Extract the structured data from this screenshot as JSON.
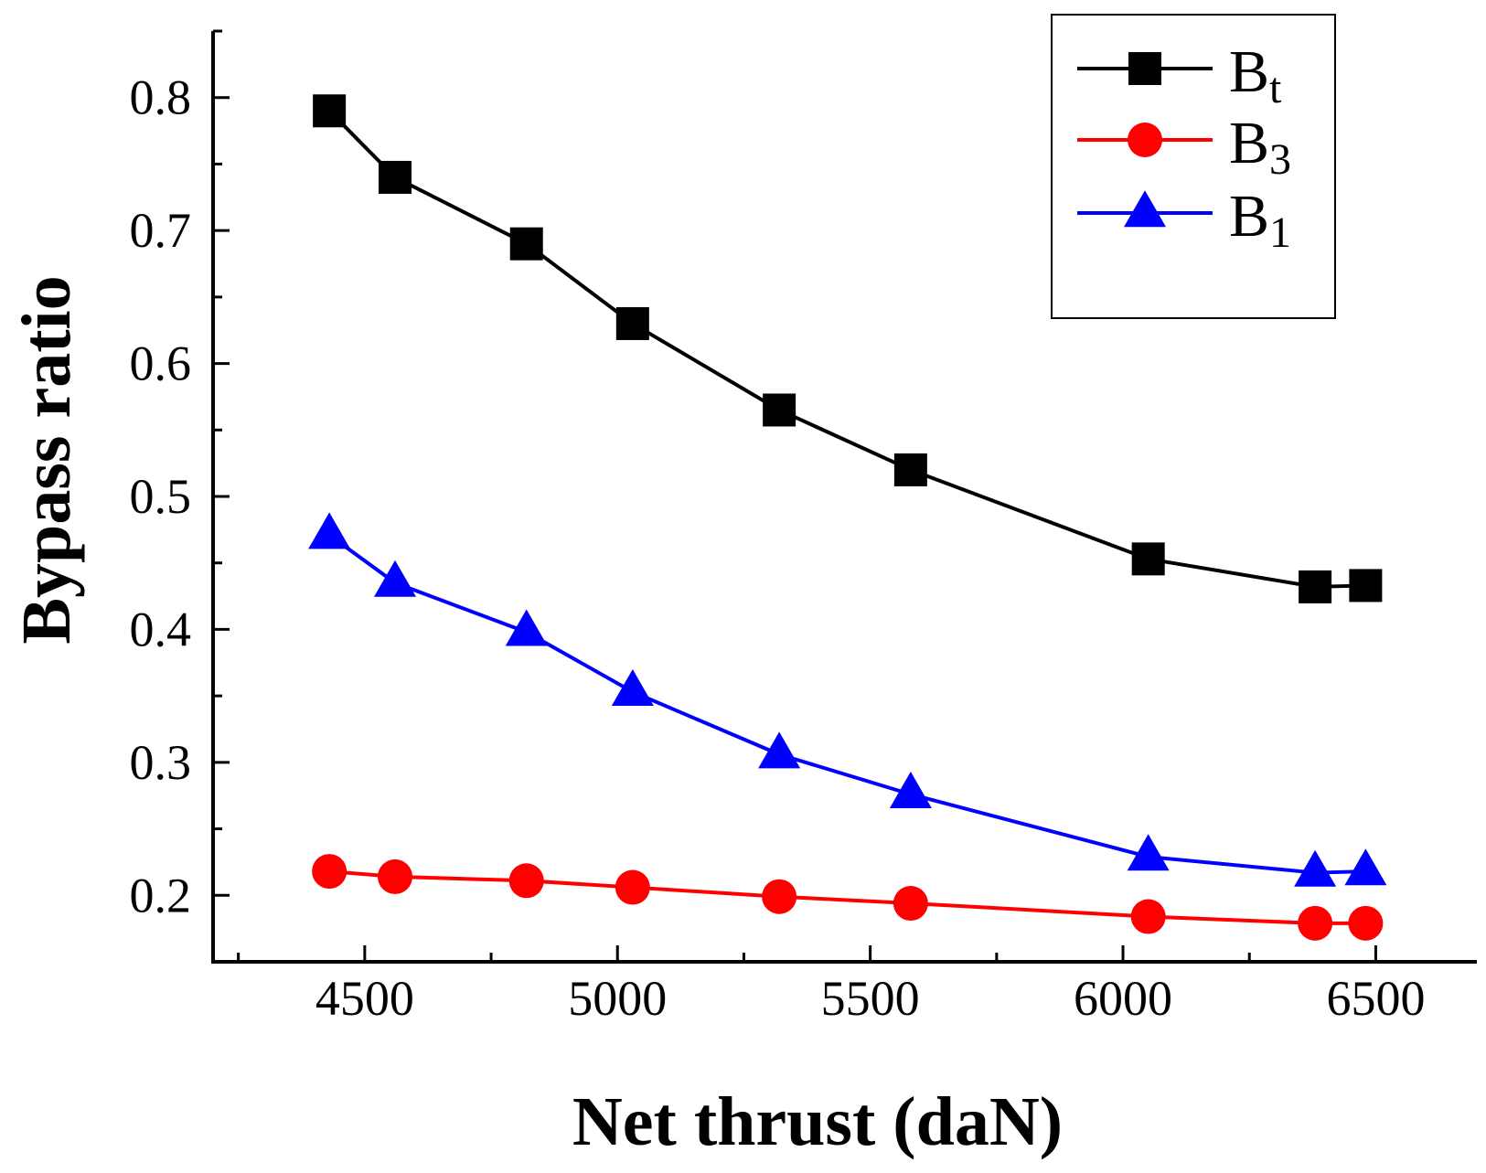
{
  "chart_data": {
    "type": "line",
    "title": "",
    "xlabel": "Net thrust (daN)",
    "ylabel": "Bypass ratio",
    "xlim": [
      4200,
      6700
    ],
    "ylim": [
      0.15,
      0.85
    ],
    "xticks": [
      4500,
      5000,
      5500,
      6000,
      6500
    ],
    "xtick_labels": [
      "4500",
      "5000",
      "5500",
      "6000",
      "6500"
    ],
    "yticks": [
      0.2,
      0.3,
      0.4,
      0.5,
      0.6,
      0.7,
      0.8
    ],
    "ytick_labels": [
      "0.2",
      "0.3",
      "0.4",
      "0.5",
      "0.6",
      "0.7",
      "0.8"
    ],
    "x": [
      4430,
      4560,
      4820,
      5030,
      5320,
      5580,
      6050,
      6380,
      6480
    ],
    "series": [
      {
        "name": "B",
        "sub": "t",
        "color": "#000000",
        "marker": "square",
        "values": [
          0.79,
          0.74,
          0.69,
          0.63,
          0.565,
          0.52,
          0.453,
          0.432,
          0.433
        ]
      },
      {
        "name": "B",
        "sub": "3",
        "color": "#ff0000",
        "marker": "circle",
        "values": [
          0.218,
          0.214,
          0.211,
          0.206,
          0.199,
          0.194,
          0.184,
          0.179,
          0.179
        ]
      },
      {
        "name": "B",
        "sub": "1",
        "color": "#0000ff",
        "marker": "triangle",
        "values": [
          0.471,
          0.435,
          0.398,
          0.353,
          0.306,
          0.276,
          0.229,
          0.217,
          0.218
        ]
      }
    ],
    "legend_position": "top-right",
    "grid": false
  }
}
